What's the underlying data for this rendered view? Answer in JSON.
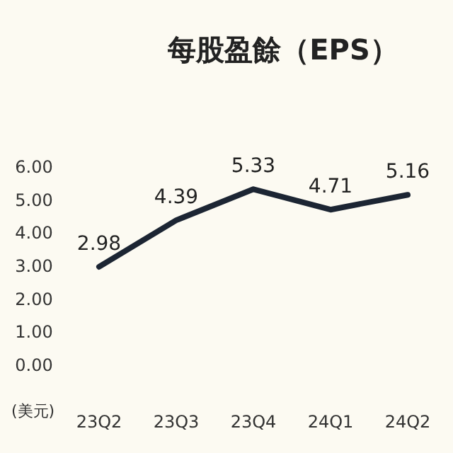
{
  "chart_data": {
    "type": "line",
    "title": "每股盈餘（EPS）",
    "ylabel": "(美元)",
    "categories": [
      "23Q2",
      "23Q3",
      "23Q4",
      "24Q1",
      "24Q2"
    ],
    "values": [
      2.98,
      4.39,
      5.33,
      4.71,
      5.16
    ],
    "color": "#1c2533",
    "ylim": [
      0,
      6
    ],
    "yticks": [
      {
        "value": 0,
        "label": "0.00"
      },
      {
        "value": 1,
        "label": "1.00"
      },
      {
        "value": 2,
        "label": "2.00"
      },
      {
        "value": 3,
        "label": "3.00"
      },
      {
        "value": 4,
        "label": "4.00"
      },
      {
        "value": 5,
        "label": "5.00"
      },
      {
        "value": 6,
        "label": "6.00"
      }
    ],
    "data_labels": true
  }
}
